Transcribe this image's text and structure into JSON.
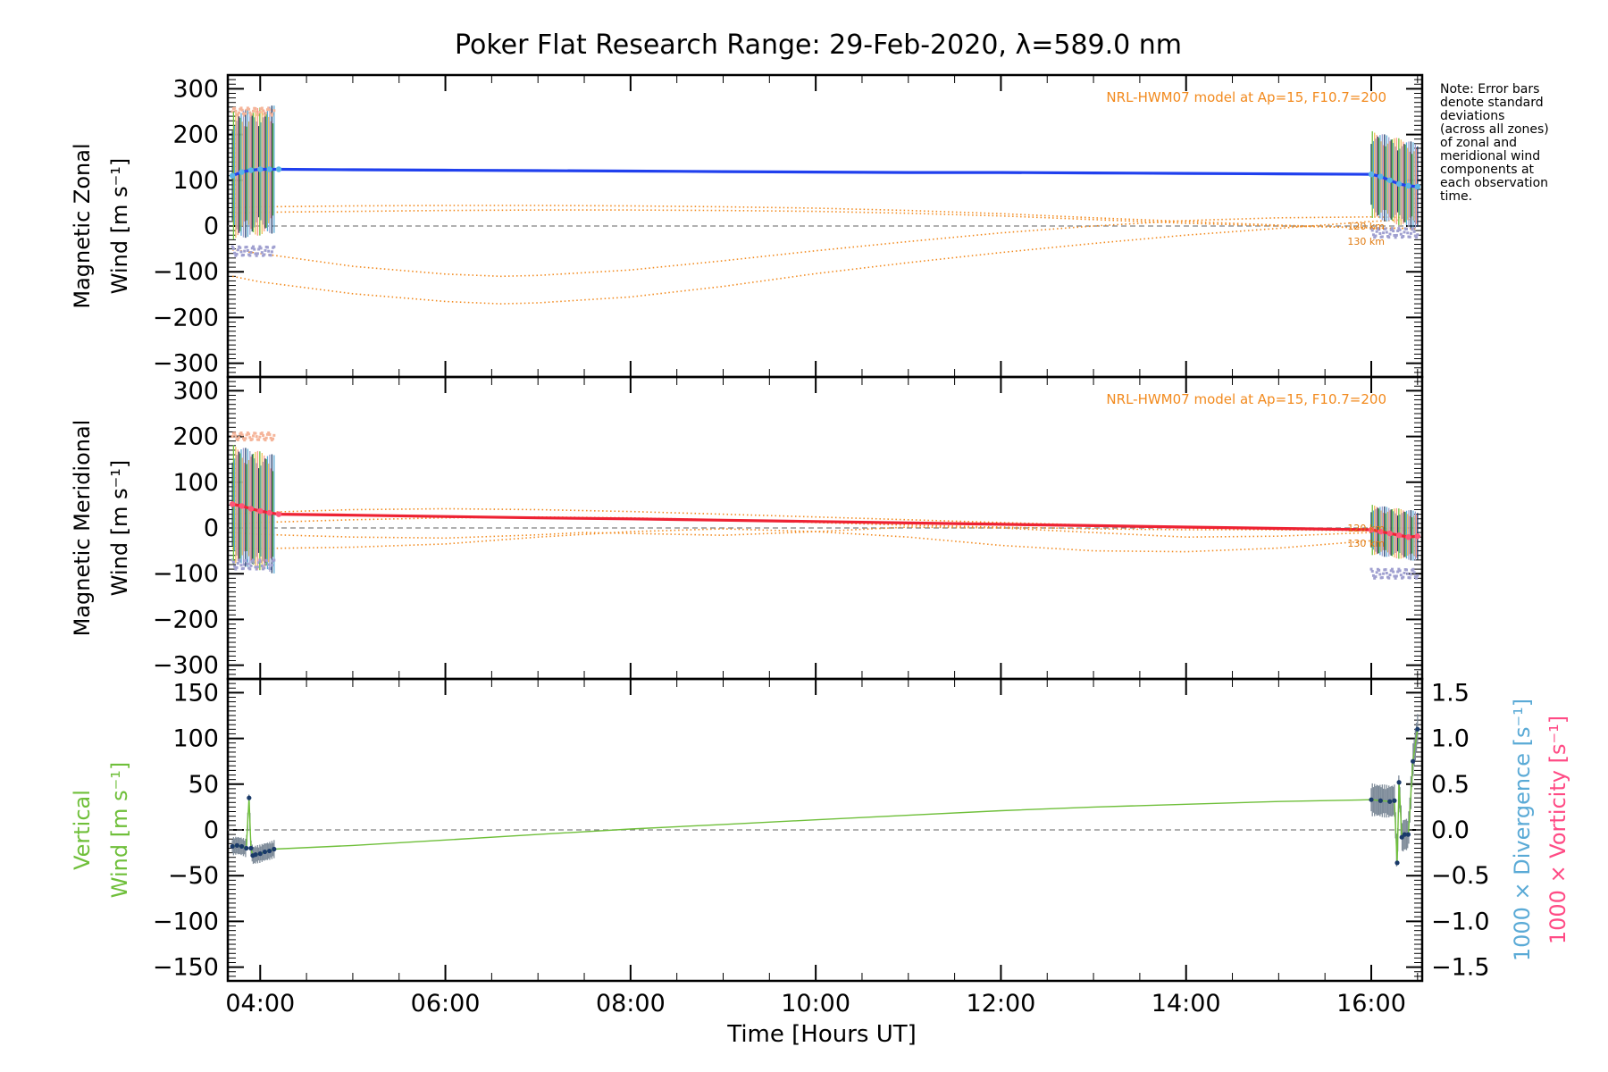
{
  "page": {
    "title": "Poker Flat Research Range: 29-Feb-2020, λ=589.0 nm",
    "note": [
      "Note: Error bars",
      "denote standard",
      "deviations",
      "(across all zones)",
      "of zonal and",
      "meridional wind",
      "components at",
      "each observation",
      "time."
    ],
    "x_axis_label": "Time [Hours UT]"
  },
  "colors": {
    "zonal_line": "#2040ee",
    "zonal_near": "#5ab4e6",
    "meridional_line": "#ee2233",
    "meridional_near": "#ff5577",
    "model": "#f28a1e",
    "vertical_line": "#6fbf3a",
    "vertical_points": "#1a3a6a",
    "divergence_label": "#5aaad6",
    "vorticity_label": "#ff4b85",
    "error_bars": [
      "#1a3a6a",
      "#6fbf3a",
      "#5aaad6",
      "#f0c060",
      "#a0a0d0",
      "#ff9a8a"
    ],
    "grey_points": "#a0a0d0",
    "zero_line": "#808080"
  },
  "chart_data": [
    {
      "type": "line",
      "panel": "zonal",
      "title": "",
      "ylabel": [
        "Magnetic Zonal",
        "Wind [m s⁻¹]"
      ],
      "ylim": [
        -330,
        330
      ],
      "yticks": [
        -300,
        -200,
        -100,
        0,
        100,
        200,
        300
      ],
      "ytick_labels": [
        "−300",
        "−200",
        "−100",
        "0",
        "100",
        "200",
        "300"
      ],
      "xlim": [
        3.65,
        16.55
      ],
      "model_note": "NRL-HWM07 model at Ap=15, F10.7=200",
      "altitude_labels": [
        "120 km",
        "130 km"
      ],
      "series": [
        {
          "role": "wind",
          "x": [
            3.7,
            3.8,
            3.9,
            4.0,
            4.1,
            4.2,
            5.0,
            6.0,
            7.0,
            8.0,
            9.0,
            10.0,
            11.0,
            12.0,
            13.0,
            14.0,
            15.0,
            16.0,
            16.1,
            16.2,
            16.3,
            16.4,
            16.5
          ],
          "y": [
            110,
            118,
            122,
            124,
            124,
            124,
            123,
            122,
            121,
            120,
            119,
            118,
            117,
            117,
            116,
            115,
            114,
            113,
            108,
            100,
            92,
            88,
            86
          ]
        },
        {
          "role": "model",
          "x": [
            3.7,
            4.0,
            5.0,
            6.0,
            6.6,
            7.0,
            8.0,
            9.0,
            10.0,
            11.0,
            12.0,
            13.0,
            14.0,
            15.0,
            16.0,
            16.5
          ],
          "y": [
            -110,
            -122,
            -148,
            -165,
            -170,
            -168,
            -155,
            -132,
            -104,
            -80,
            -58,
            -38,
            -20,
            -5,
            10,
            15
          ]
        },
        {
          "role": "model",
          "x": [
            3.7,
            4.0,
            5.0,
            6.0,
            6.6,
            7.0,
            8.0,
            9.0,
            10.0,
            11.0,
            12.0,
            13.0,
            14.0,
            15.0,
            16.0,
            16.5
          ],
          "y": [
            -52,
            -60,
            -88,
            -105,
            -110,
            -108,
            -96,
            -76,
            -54,
            -34,
            -15,
            0,
            12,
            18,
            20,
            18
          ]
        },
        {
          "role": "model",
          "x": [
            3.7,
            4.0,
            5.0,
            6.0,
            7.0,
            8.0,
            9.0,
            10.0,
            11.0,
            12.0,
            13.0,
            14.0,
            15.0,
            16.0,
            16.5
          ],
          "y": [
            28,
            30,
            32,
            34,
            35,
            35,
            34,
            32,
            28,
            22,
            14,
            6,
            0,
            -4,
            -5
          ]
        },
        {
          "role": "model",
          "x": [
            3.7,
            4.0,
            5.0,
            6.0,
            7.0,
            8.0,
            9.0,
            10.0,
            11.0,
            12.0,
            13.0,
            14.0,
            15.0,
            16.0,
            16.5
          ],
          "y": [
            40,
            42,
            44,
            45,
            45,
            44,
            42,
            39,
            34,
            27,
            18,
            10,
            2,
            -4,
            -6
          ]
        }
      ],
      "errorbar_groups": [
        {
          "start": 3.7,
          "end": 4.15,
          "center_start": 110,
          "center_end": 124,
          "halfwidth": 140,
          "markers_above": 250,
          "markers_below": -55
        },
        {
          "start": 16.0,
          "end": 16.5,
          "center_start": 113,
          "center_end": 86,
          "halfwidth": 95,
          "markers_above": 0,
          "markers_below": -15
        }
      ]
    },
    {
      "type": "line",
      "panel": "meridional",
      "title": "",
      "ylabel": [
        "Magnetic Meridional",
        "Wind [m s⁻¹]"
      ],
      "ylim": [
        -330,
        330
      ],
      "yticks": [
        -300,
        -200,
        -100,
        0,
        100,
        200,
        300
      ],
      "ytick_labels": [
        "−300",
        "−200",
        "−100",
        "0",
        "100",
        "200",
        "300"
      ],
      "xlim": [
        3.65,
        16.55
      ],
      "model_note": "NRL-HWM07 model at Ap=15, F10.7=200",
      "altitude_labels": [
        "120 km",
        "130 km"
      ],
      "series": [
        {
          "role": "wind",
          "x": [
            3.7,
            3.8,
            3.9,
            4.0,
            4.1,
            4.2,
            5.0,
            6.0,
            7.0,
            8.0,
            9.0,
            10.0,
            11.0,
            12.0,
            13.0,
            14.0,
            15.0,
            16.0,
            16.1,
            16.2,
            16.3,
            16.4,
            16.5
          ],
          "y": [
            52,
            48,
            42,
            37,
            33,
            30,
            28,
            25,
            22,
            20,
            17,
            14,
            11,
            8,
            5,
            2,
            -1,
            -4,
            -8,
            -12,
            -16,
            -20,
            -18
          ]
        },
        {
          "role": "model",
          "x": [
            3.7,
            4.0,
            5.0,
            6.0,
            7.0,
            8.0,
            9.0,
            10.0,
            11.0,
            12.0,
            13.0,
            14.0,
            15.0,
            16.0,
            16.5
          ],
          "y": [
            -45,
            -45,
            -42,
            -35,
            -20,
            -8,
            -2,
            -8,
            -20,
            -38,
            -50,
            -52,
            -44,
            -28,
            -15
          ]
        },
        {
          "role": "model",
          "x": [
            3.7,
            4.0,
            5.0,
            6.0,
            7.0,
            7.5,
            8.0,
            9.0,
            10.0,
            11.0,
            12.0,
            13.0,
            14.0,
            15.0,
            16.0,
            16.5
          ],
          "y": [
            -10,
            -14,
            -20,
            -22,
            -15,
            -10,
            -12,
            -16,
            -8,
            2,
            0,
            -10,
            -20,
            -18,
            -10,
            -5
          ]
        },
        {
          "role": "model",
          "x": [
            3.7,
            4.0,
            5.0,
            6.0,
            7.0,
            8.0,
            9.0,
            10.0,
            11.0,
            12.0,
            13.0,
            14.0,
            15.0,
            16.0,
            16.5
          ],
          "y": [
            8,
            12,
            18,
            22,
            24,
            22,
            18,
            12,
            6,
            2,
            -2,
            -4,
            -4,
            -2,
            0
          ]
        },
        {
          "role": "model",
          "x": [
            3.7,
            4.0,
            5.0,
            6.0,
            7.0,
            8.0,
            9.0,
            10.0,
            11.0,
            12.0,
            13.0,
            14.0,
            15.0,
            16.0,
            16.5
          ],
          "y": [
            30,
            34,
            40,
            42,
            40,
            36,
            30,
            24,
            18,
            12,
            6,
            0,
            -4,
            -6,
            -4
          ]
        }
      ],
      "errorbar_groups": [
        {
          "start": 3.7,
          "end": 4.15,
          "center_start": 52,
          "center_end": 30,
          "halfwidth": 130,
          "markers_above": 200,
          "markers_below": -80
        },
        {
          "start": 16.0,
          "end": 16.5,
          "center_start": -4,
          "center_end": -18,
          "halfwidth": 55,
          "markers_above": 0,
          "markers_below": -100
        }
      ]
    },
    {
      "type": "line",
      "panel": "vertical",
      "title": "",
      "ylabel_left": [
        "Vertical",
        "Wind [m s⁻¹]"
      ],
      "ylabel_right_1": "1000 × Divergence [s⁻¹]",
      "ylabel_right_2": "1000 × Vorticity [s⁻¹]",
      "ylim": [
        -165,
        165
      ],
      "yticks": [
        -150,
        -100,
        -50,
        0,
        50,
        100,
        150
      ],
      "ytick_labels": [
        "−150",
        "−100",
        "−50",
        "0",
        "50",
        "100",
        "150"
      ],
      "ylim_right": [
        -1.65,
        1.65
      ],
      "yticks_right": [
        -1.5,
        -1.0,
        -0.5,
        0.0,
        0.5,
        1.0,
        1.5
      ],
      "ytick_labels_right": [
        "−1.5",
        "−1.0",
        "−0.5",
        "0.0",
        "0.5",
        "1.0",
        "1.5"
      ],
      "xlim": [
        3.65,
        16.55
      ],
      "xticks": [
        4,
        6,
        8,
        10,
        12,
        14,
        16
      ],
      "xtick_labels": [
        "04:00",
        "06:00",
        "08:00",
        "10:00",
        "12:00",
        "14:00",
        "16:00"
      ],
      "series": [
        {
          "role": "wind",
          "x": [
            3.7,
            3.75,
            3.8,
            3.85,
            3.88,
            3.9,
            3.92,
            3.95,
            4.0,
            4.05,
            4.1,
            4.15,
            5.0,
            6.0,
            7.0,
            8.0,
            9.0,
            10.0,
            11.0,
            12.0,
            13.0,
            14.0,
            15.0,
            16.0,
            16.1,
            16.2,
            16.25,
            16.28,
            16.3,
            16.33,
            16.36,
            16.4,
            16.45,
            16.5
          ],
          "y": [
            -18,
            -17,
            -18,
            -20,
            35,
            -20,
            -28,
            -27,
            -26,
            -24,
            -23,
            -21,
            -17,
            -11,
            -5,
            1,
            6,
            11,
            16,
            21,
            25,
            28,
            31,
            33,
            32,
            31,
            32,
            -36,
            52,
            -8,
            -5,
            -5,
            75,
            110
          ]
        }
      ],
      "errorbar_groups": [
        {
          "start": 3.7,
          "end": 4.15,
          "halfwidth": 10
        },
        {
          "start": 16.0,
          "end": 16.5,
          "halfwidth": 18
        }
      ]
    }
  ]
}
